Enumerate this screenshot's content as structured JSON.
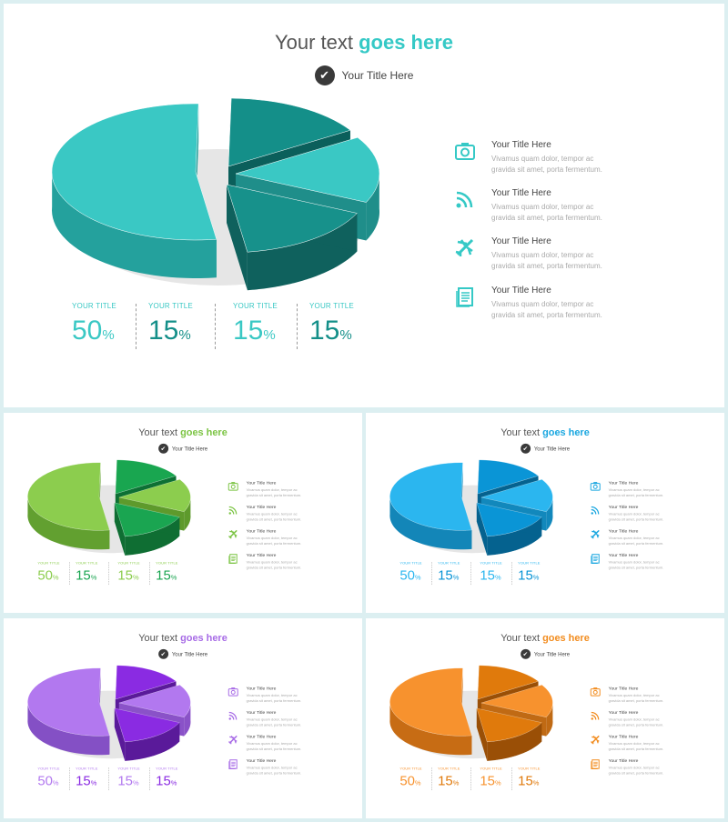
{
  "slides": [
    {
      "title_plain": "Your text ",
      "title_highlight": "goes here",
      "subtitle": "Your Title Here",
      "colors": {
        "accent": "#35c9c6",
        "p1": "#3ac8c4",
        "p1s": "#24a19d",
        "p2": "#148f89",
        "p2s": "#0b5f5b",
        "p3": "#3ac8c4",
        "p3s": "#1f8e8a",
        "p4": "#17918b",
        "p4s": "#0f615d",
        "lab": "#3ac8c4",
        "v1": "#3ac8c4",
        "v2": "#148f89",
        "v3": "#3ac8c4",
        "v4": "#148f89"
      }
    },
    {
      "title_plain": "Your text ",
      "title_highlight": "goes here",
      "subtitle": "Your Title Here",
      "colors": {
        "accent": "#7cc444",
        "p1": "#8ccd4e",
        "p1s": "#62a030",
        "p2": "#19a650",
        "p2s": "#0d7034",
        "p3": "#8ccd4e",
        "p3s": "#5e9a2c",
        "p4": "#1aa551",
        "p4s": "#0f6e33",
        "lab": "#8ccd4e",
        "v1": "#8ccd4e",
        "v2": "#1aa551",
        "v3": "#8ccd4e",
        "v4": "#1aa551"
      }
    },
    {
      "title_plain": "Your text ",
      "title_highlight": "goes here",
      "subtitle": "Your Title Here",
      "colors": {
        "accent": "#1aa7e0",
        "p1": "#2bb6ef",
        "p1s": "#1386b8",
        "p2": "#0a95d6",
        "p2s": "#05628f",
        "p3": "#2bb6ef",
        "p3s": "#1288bc",
        "p4": "#0a95d6",
        "p4s": "#05628f",
        "lab": "#2bb6ef",
        "v1": "#2bb6ef",
        "v2": "#0a95d6",
        "v3": "#2bb6ef",
        "v4": "#0a95d6"
      }
    },
    {
      "title_plain": "Your text ",
      "title_highlight": "goes here",
      "subtitle": "Your Title Here",
      "colors": {
        "accent": "#a76be6",
        "p1": "#b278ef",
        "p1s": "#8450c5",
        "p2": "#8a2be2",
        "p2s": "#5a1a9a",
        "p3": "#b278ef",
        "p3s": "#8a52c8",
        "p4": "#8a2be2",
        "p4s": "#5a1a9a",
        "lab": "#b278ef",
        "v1": "#b278ef",
        "v2": "#8a2be2",
        "v3": "#b278ef",
        "v4": "#8a2be2"
      }
    },
    {
      "title_plain": "Your text ",
      "title_highlight": "goes here",
      "subtitle": "Your Title Here",
      "colors": {
        "accent": "#f28c1e",
        "p1": "#f7922e",
        "p1s": "#c76c14",
        "p2": "#e07a0c",
        "p2s": "#9a4f06",
        "p3": "#f7922e",
        "p3s": "#c06a14",
        "p4": "#e07a0c",
        "p4s": "#9a4f06",
        "lab": "#f7922e",
        "v1": "#f7922e",
        "v2": "#e07a0c",
        "v3": "#f7922e",
        "v4": "#e07a0c"
      }
    }
  ],
  "stats": [
    {
      "label": "YOUR TITLE",
      "value": "50",
      "unit": "%"
    },
    {
      "label": "YOUR TITLE",
      "value": "15",
      "unit": "%"
    },
    {
      "label": "YOUR TITLE",
      "value": "15",
      "unit": "%"
    },
    {
      "label": "YOUR TITLE",
      "value": "15",
      "unit": "%"
    }
  ],
  "items": [
    {
      "icon": "camera-icon",
      "title": "Your Title Here",
      "desc": "Vivamus quam dolor, tempor ac gravida sit amet, porta fermentum."
    },
    {
      "icon": "wifi-icon",
      "title": "Your Title Here",
      "desc": "Vivamus quam dolor, tempor ac gravida sit amet, porta fermentum."
    },
    {
      "icon": "airplane-icon",
      "title": "Your Title Here",
      "desc": "Vivamus quam dolor, tempor ac gravida sit amet, porta fermentum."
    },
    {
      "icon": "document-icon",
      "title": "Your Title Here",
      "desc": "Vivamus quam dolor, tempor ac gravida sit amet, porta fermentum."
    }
  ],
  "chart_data": {
    "type": "pie",
    "categories": [
      "YOUR TITLE",
      "YOUR TITLE",
      "YOUR TITLE",
      "YOUR TITLE"
    ],
    "values": [
      50,
      15,
      15,
      15
    ],
    "unit": "%",
    "title": "",
    "style": "3d-exploded"
  }
}
